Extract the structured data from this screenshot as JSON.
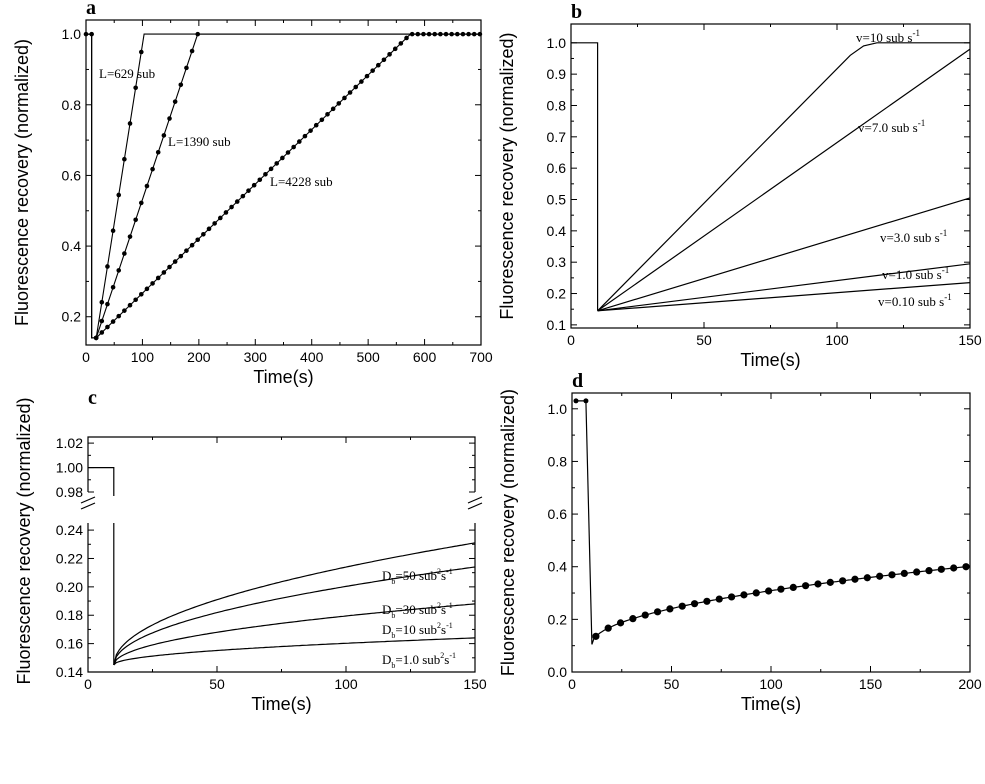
{
  "chart_data": [
    {
      "panel": "a",
      "type": "line",
      "xlabel": "Time(s)",
      "ylabel": "Fluorescence recovery (normalized)",
      "xlim": [
        0,
        700
      ],
      "ylim": [
        0.12,
        1.04
      ],
      "xticks": [
        "0",
        "100",
        "200",
        "300",
        "400",
        "500",
        "600",
        "700"
      ],
      "yticks": [
        "0.2",
        "0.4",
        "0.6",
        "0.8",
        "1.0"
      ],
      "markers": true,
      "series": [
        {
          "annotation": "L=629 sub",
          "t_bleach": 10,
          "t_min": 18,
          "min": 0.14,
          "t_full": 103,
          "marker_step": 10
        },
        {
          "annotation": "L=1390 sub",
          "t_bleach": 10,
          "t_min": 18,
          "min": 0.14,
          "t_full": 198,
          "marker_step": 10
        },
        {
          "annotation": "L=4228 sub",
          "t_bleach": 10,
          "t_min": 18,
          "min": 0.14,
          "t_full": 575,
          "marker_step": 10
        }
      ]
    },
    {
      "panel": "b",
      "type": "line",
      "xlabel": "Time(s)",
      "ylabel": "Fluorescence recovery (normalized)",
      "xlim": [
        0,
        150
      ],
      "ylim": [
        0.09,
        1.06
      ],
      "xticks": [
        "0",
        "50",
        "100",
        "150"
      ],
      "yticks": [
        "0.1",
        "0.2",
        "0.3",
        "0.4",
        "0.5",
        "0.6",
        "0.7",
        "0.8",
        "0.9",
        "1.0"
      ],
      "series": [
        {
          "annotation": "v=10 sub s",
          "superscript": "-1",
          "t_bleach": 10,
          "min": 0.145,
          "points": [
            [
              10,
              0.145
            ],
            [
              105,
              0.96
            ],
            [
              110,
              0.99
            ],
            [
              115,
              1.0
            ],
            [
              150,
              1.0
            ]
          ]
        },
        {
          "annotation": "v=7.0 sub s",
          "superscript": "-1",
          "t_bleach": 10,
          "min": 0.145,
          "points": [
            [
              10,
              0.145
            ],
            [
              150,
              0.98
            ]
          ]
        },
        {
          "annotation": "v=3.0 sub s",
          "superscript": "-1",
          "t_bleach": 10,
          "min": 0.145,
          "points": [
            [
              10,
              0.145
            ],
            [
              150,
              0.505
            ]
          ]
        },
        {
          "annotation": "v=1.0 sub s",
          "superscript": "-1",
          "t_bleach": 10,
          "min": 0.145,
          "points": [
            [
              10,
              0.145
            ],
            [
              150,
              0.295
            ]
          ]
        },
        {
          "annotation": "v=0.10 sub s",
          "superscript": "-1",
          "t_bleach": 10,
          "min": 0.145,
          "points": [
            [
              10,
              0.145
            ],
            [
              150,
              0.235
            ]
          ]
        }
      ]
    },
    {
      "panel": "c",
      "type": "line",
      "xlabel": "Time(s)",
      "ylabel": "Fluorescence recovery (normalized)",
      "xlim": [
        0,
        150
      ],
      "ylim_lower": [
        0.14,
        0.245
      ],
      "ylim_upper": [
        0.98,
        1.025
      ],
      "broken_axis": true,
      "xticks": [
        "0",
        "50",
        "100",
        "150"
      ],
      "yticks_lower": [
        "0.14",
        "0.16",
        "0.18",
        "0.20",
        "0.22",
        "0.24"
      ],
      "yticks_upper": [
        "0.98",
        "1.00",
        "1.02"
      ],
      "series": [
        {
          "annotation": "D",
          "subscript": "b",
          "annotation_rest": "=50 sub",
          "superscript": "2",
          "annotation_tail": "s",
          "superscript2": "-1",
          "t_bleach": 10,
          "min": 0.145,
          "end": 0.231
        },
        {
          "annotation": "D",
          "subscript": "b",
          "annotation_rest": "=30 sub",
          "superscript": "2",
          "annotation_tail": "s",
          "superscript2": "-1",
          "t_bleach": 10,
          "min": 0.145,
          "end": 0.214
        },
        {
          "annotation": "D",
          "subscript": "b",
          "annotation_rest": "=10 sub",
          "superscript": "2",
          "annotation_tail": "s",
          "superscript2": "-1",
          "t_bleach": 10,
          "min": 0.145,
          "end": 0.188
        },
        {
          "annotation": "D",
          "subscript": "b",
          "annotation_rest": "=1.0 sub",
          "superscript": "2",
          "annotation_tail": "s",
          "superscript2": "-1",
          "t_bleach": 10,
          "min": 0.145,
          "end": 0.164
        }
      ]
    },
    {
      "panel": "d",
      "type": "line",
      "xlabel": "Time(s)",
      "ylabel": "Fluorescence recovery (normalized)",
      "xlim": [
        0,
        200
      ],
      "ylim": [
        0,
        1.06
      ],
      "xticks": [
        "0",
        "50",
        "100",
        "150",
        "200"
      ],
      "yticks": [
        "0.0",
        "0.2",
        "0.4",
        "0.6",
        "0.8",
        "1.0"
      ],
      "markers": true,
      "series": [
        {
          "t_pre": [
            2,
            7
          ],
          "pre_value": 1.03,
          "t_bleach": 10,
          "min": 0.105,
          "end": 0.4,
          "t_end": 198,
          "marker_step": 6.2
        }
      ]
    }
  ]
}
